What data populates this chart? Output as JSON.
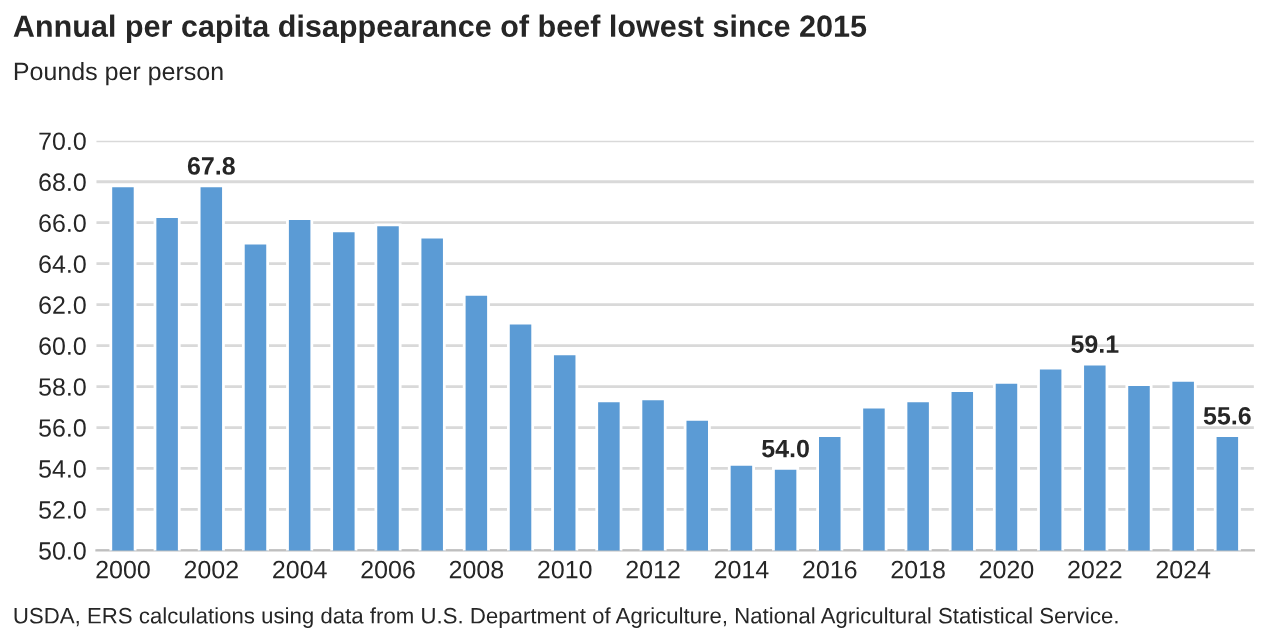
{
  "chart_data": {
    "type": "bar",
    "title": "Annual per capita disappearance of beef lowest since 2015",
    "subtitle": "Pounds per person",
    "categories": [
      "2000",
      null,
      "2002",
      null,
      "2004",
      null,
      "2006",
      null,
      "2008",
      null,
      "2010",
      null,
      "2012",
      null,
      "2014",
      null,
      "2016",
      null,
      "2018",
      null,
      "2020",
      null,
      "2022",
      null,
      "2024",
      null
    ],
    "values": [
      67.8,
      66.3,
      67.8,
      65.0,
      66.2,
      65.6,
      65.9,
      65.3,
      62.5,
      61.1,
      59.6,
      57.3,
      57.4,
      56.4,
      54.2,
      54.0,
      55.6,
      57.0,
      57.3,
      57.8,
      58.2,
      58.9,
      59.1,
      58.1,
      58.3,
      55.6
    ],
    "value_labels": [
      null,
      null,
      "67.8",
      null,
      null,
      null,
      null,
      null,
      null,
      null,
      null,
      null,
      null,
      null,
      null,
      "54.0",
      null,
      null,
      null,
      null,
      null,
      null,
      "59.1",
      null,
      null,
      "55.6"
    ],
    "color": "#5b9bd5",
    "ylim": [
      50,
      70
    ],
    "yticks": [
      {
        "value": 50,
        "label": "50.0"
      },
      {
        "value": 52,
        "label": "52.0"
      },
      {
        "value": 54,
        "label": "54.0"
      },
      {
        "value": 56,
        "label": "56.0"
      },
      {
        "value": 58,
        "label": "58.0"
      },
      {
        "value": 60,
        "label": "60.0"
      },
      {
        "value": 62,
        "label": "62.0"
      },
      {
        "value": 64,
        "label": "64.0"
      },
      {
        "value": 66,
        "label": "66.0"
      },
      {
        "value": 68,
        "label": "68.0"
      },
      {
        "value": 70,
        "label": "70.0"
      }
    ],
    "grid": "y",
    "annotations": [
      "USDA, ERS calculations using data from U.S. Department of Agriculture, National Agricultural Statistical Service."
    ]
  }
}
